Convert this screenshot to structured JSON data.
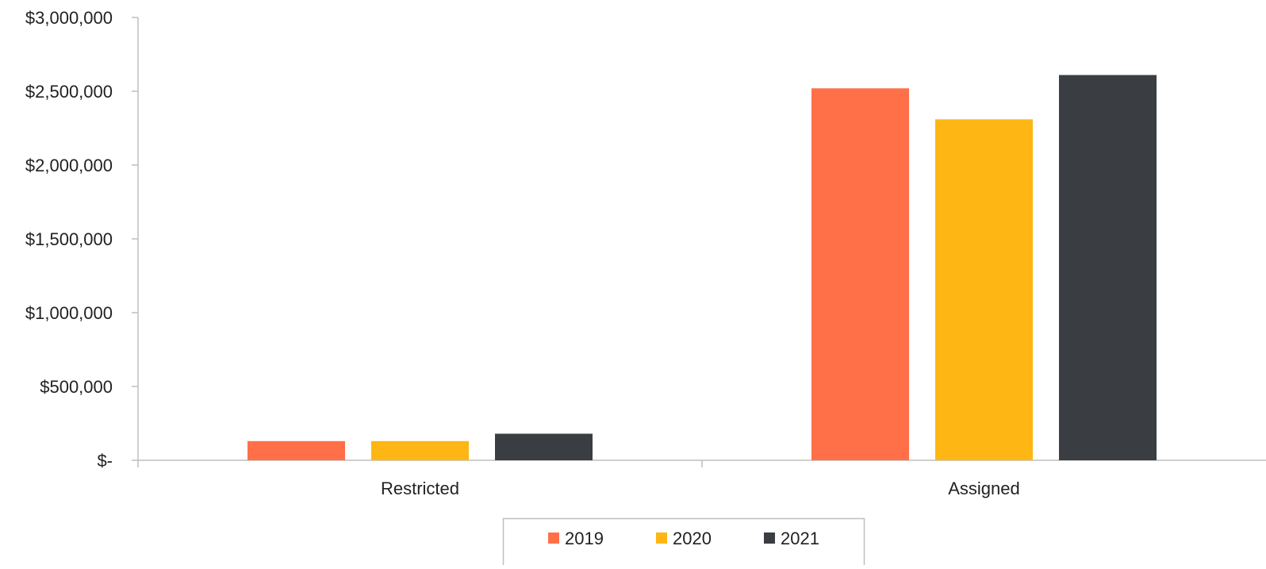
{
  "chart_data": {
    "type": "bar",
    "title": "",
    "xlabel": "",
    "ylabel": "",
    "categories": [
      "Restricted",
      "Assigned"
    ],
    "series": [
      {
        "name": "2019",
        "color": "#FF7049",
        "values": [
          130000,
          2520000
        ]
      },
      {
        "name": "2020",
        "color": "#FDB614",
        "values": [
          130000,
          2310000
        ]
      },
      {
        "name": "2021",
        "color": "#3A3E42",
        "values": [
          180000,
          2610000
        ]
      }
    ],
    "ylim": [
      0,
      3000000
    ],
    "yticks": [
      {
        "value": 0,
        "label": "$-"
      },
      {
        "value": 500000,
        "label": "$500,000"
      },
      {
        "value": 1000000,
        "label": "$1,000,000"
      },
      {
        "value": 1500000,
        "label": "$1,500,000"
      },
      {
        "value": 2000000,
        "label": "$2,000,000"
      },
      {
        "value": 2500000,
        "label": "$2,500,000"
      },
      {
        "value": 3000000,
        "label": "$3,000,000"
      }
    ],
    "grid": false,
    "legend": "bottom-center",
    "axis_color": "#BFBFBF"
  }
}
